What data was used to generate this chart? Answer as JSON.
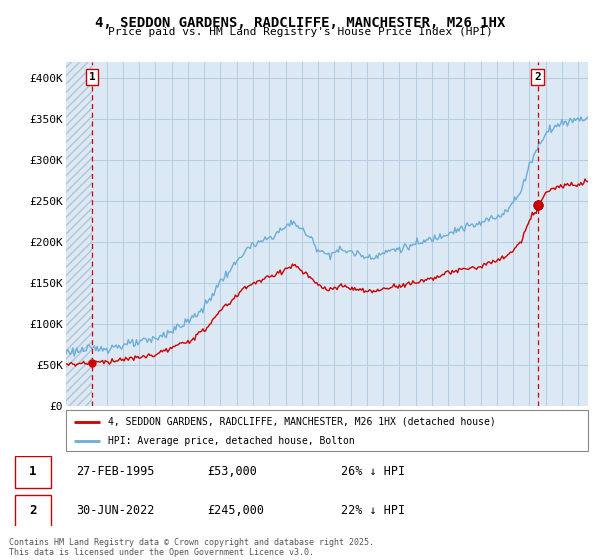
{
  "title": "4, SEDDON GARDENS, RADCLIFFE, MANCHESTER, M26 1HX",
  "subtitle": "Price paid vs. HM Land Registry's House Price Index (HPI)",
  "hpi_color": "#6baed6",
  "price_color": "#cc0000",
  "dashed_color": "#cc0000",
  "hatch_color": "#c8d8e8",
  "bg_color": "#dce8f4",
  "grid_color": "#aec8e0",
  "ylim": [
    0,
    420000
  ],
  "yticks": [
    0,
    50000,
    100000,
    150000,
    200000,
    250000,
    300000,
    350000,
    400000
  ],
  "ytick_labels": [
    "£0",
    "£50K",
    "£100K",
    "£150K",
    "£200K",
    "£250K",
    "£300K",
    "£350K",
    "£400K"
  ],
  "sale1_date": 1995.12,
  "sale1_price": 53000,
  "sale2_date": 2022.5,
  "sale2_price": 245000,
  "legend_line1": "4, SEDDON GARDENS, RADCLIFFE, MANCHESTER, M26 1HX (detached house)",
  "legend_line2": "HPI: Average price, detached house, Bolton",
  "table_row1": [
    "1",
    "27-FEB-1995",
    "£53,000",
    "26% ↓ HPI"
  ],
  "table_row2": [
    "2",
    "30-JUN-2022",
    "£245,000",
    "22% ↓ HPI"
  ],
  "footer": "Contains HM Land Registry data © Crown copyright and database right 2025.\nThis data is licensed under the Open Government Licence v3.0.",
  "xlim_start": 1993.5,
  "xlim_end": 2025.6
}
